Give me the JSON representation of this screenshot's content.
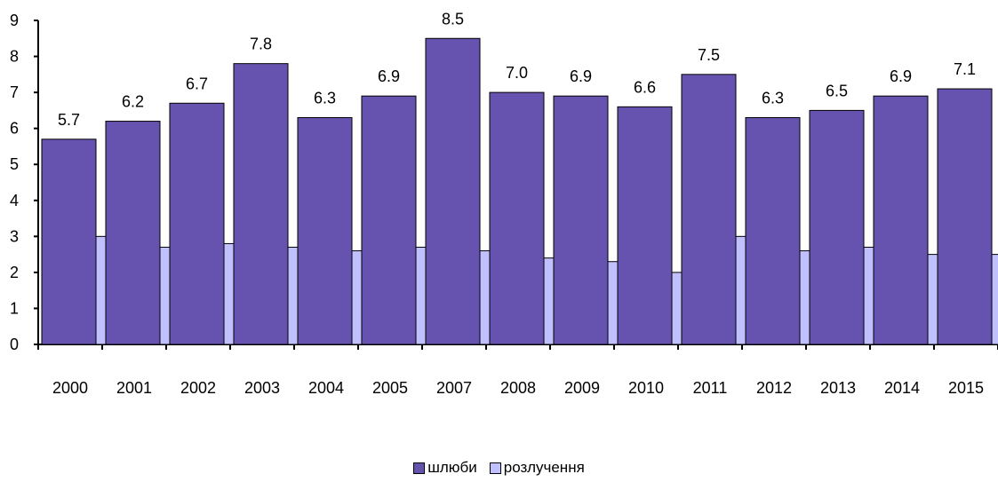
{
  "chart_data": {
    "type": "bar",
    "categories": [
      "2000",
      "2001",
      "2002",
      "2003",
      "2004",
      "2005",
      "2007",
      "2008",
      "2009",
      "2010",
      "2011",
      "2012",
      "2013",
      "2014",
      "2015"
    ],
    "series": [
      {
        "name": "шлюби",
        "color": "#6653B0",
        "values": [
          5.7,
          6.2,
          6.7,
          7.8,
          6.3,
          6.9,
          8.5,
          7.0,
          6.9,
          6.6,
          7.5,
          6.3,
          6.5,
          6.9,
          7.1
        ],
        "labels": [
          "5.7",
          "6.2",
          "6.7",
          "7.8",
          "6.3",
          "6.9",
          "8.5",
          "7.0",
          "6.9",
          "6.6",
          "7.5",
          "6.3",
          "6.5",
          "6.9",
          "7.1"
        ]
      },
      {
        "name": "розлучення",
        "color": "#C0C0FF",
        "values": [
          3.0,
          2.7,
          2.8,
          2.7,
          2.6,
          2.7,
          2.6,
          2.4,
          2.3,
          2.0,
          3.0,
          2.6,
          2.7,
          2.5,
          2.5
        ],
        "labels": [
          "3.0",
          "2.7",
          "2.8",
          "2.7",
          "2.6",
          "2.7",
          "2.6",
          "2.4",
          "2.3",
          "2.0",
          "3.0",
          "2.6",
          "2.7",
          "2.5",
          "2.5"
        ]
      }
    ],
    "ylim": [
      0,
      9
    ],
    "yticks": [
      "0",
      "1",
      "2",
      "3",
      "4",
      "5",
      "6",
      "7",
      "8",
      "9"
    ],
    "grid": false,
    "legend_position": "bottom"
  }
}
